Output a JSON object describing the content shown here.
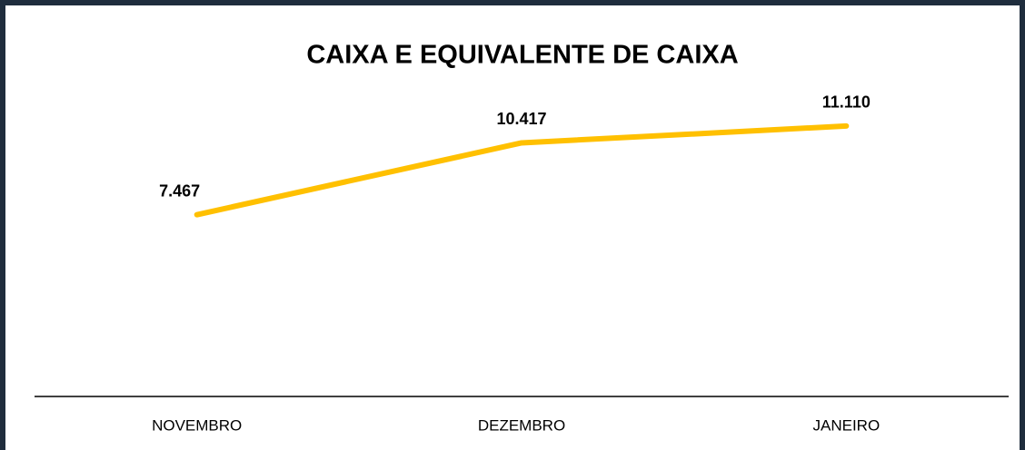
{
  "chart_data": {
    "type": "line",
    "title": "CAIXA E EQUIVALENTE DE CAIXA",
    "categories": [
      "NOVEMBRO",
      "DEZEMBRO",
      "JANEIRO"
    ],
    "values": [
      7467,
      10417,
      11110
    ],
    "value_labels": [
      "7.467",
      "10.417",
      "11.110"
    ],
    "color": "#ffc000",
    "ylim": [
      0,
      12000
    ]
  }
}
